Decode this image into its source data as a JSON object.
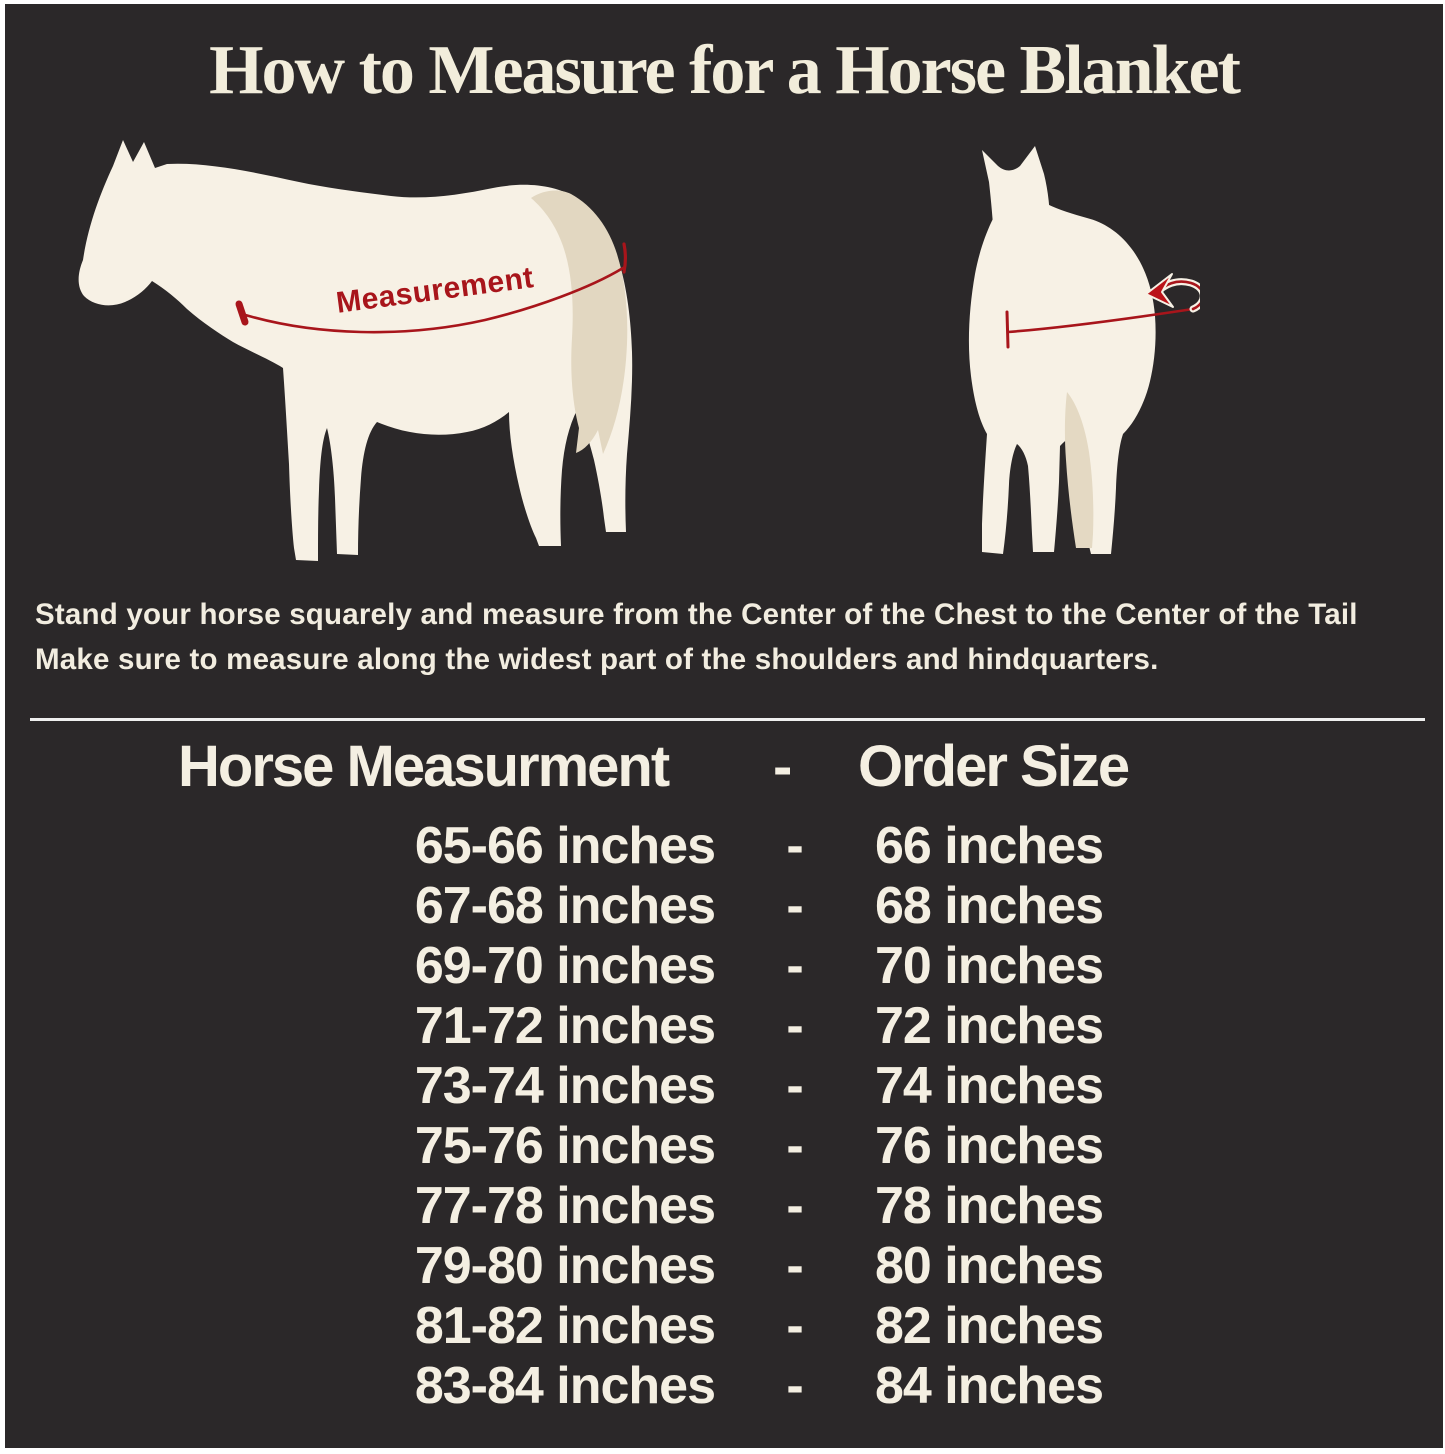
{
  "title": "How to Measure for a Horse Blanket",
  "diagram": {
    "measurement_label": "Measurement"
  },
  "instructions": {
    "line1": "Stand your horse squarely and measure from the Center of the Chest to the Center of the Tail",
    "line2": "Make sure to measure along the widest part of the shoulders and hindquarters."
  },
  "size_table": {
    "header": {
      "measurement": "Horse Measurment",
      "separator": "-",
      "order": "Order Size"
    },
    "rows": [
      {
        "measurement": "65-66 inches",
        "separator": "-",
        "order": "66 inches"
      },
      {
        "measurement": "67-68 inches",
        "separator": "-",
        "order": "68 inches"
      },
      {
        "measurement": "69-70 inches",
        "separator": "-",
        "order": "70 inches"
      },
      {
        "measurement": "71-72 inches",
        "separator": "-",
        "order": "72 inches"
      },
      {
        "measurement": "73-74 inches",
        "separator": "-",
        "order": "74 inches"
      },
      {
        "measurement": "75-76 inches",
        "separator": "-",
        "order": "76 inches"
      },
      {
        "measurement": "77-78 inches",
        "separator": "-",
        "order": "78 inches"
      },
      {
        "measurement": "79-80 inches",
        "separator": "-",
        "order": "80 inches"
      },
      {
        "measurement": "81-82 inches",
        "separator": "-",
        "order": "82 inches"
      },
      {
        "measurement": "83-84 inches",
        "separator": "-",
        "order": "84 inches"
      }
    ]
  },
  "colors": {
    "background": "#2b2829",
    "frame": "#ffffff",
    "cream_text": "#f4efe2",
    "title_text": "#f2eddb",
    "horse_body": "#f7f1e5",
    "horse_tail": "#e2d7c1",
    "measurement_red": "#a8151b",
    "arrow_red": "#bb1319",
    "divider": "#efefee"
  }
}
